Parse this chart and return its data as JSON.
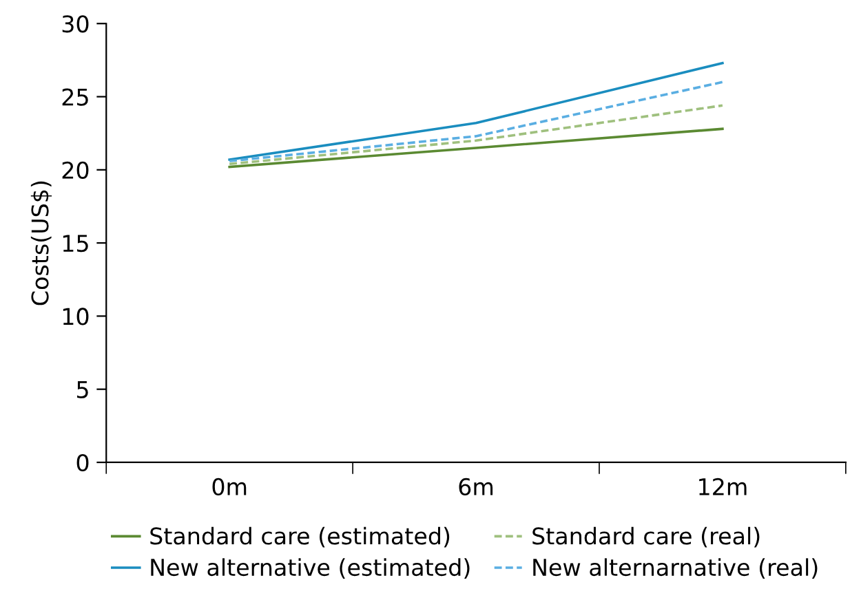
{
  "chart_data": {
    "type": "line",
    "ylabel": "Costs(US$)",
    "categories": [
      "0m",
      "6m",
      "12m"
    ],
    "ylim": [
      0,
      30
    ],
    "yticks": [
      0,
      5,
      10,
      15,
      20,
      25,
      30
    ],
    "grid": false,
    "legend": "bottom",
    "marker": "none",
    "series": [
      {
        "name": "Standard care (estimated)",
        "color": "#5b8a32",
        "line_style": "solid",
        "values": [
          20.2,
          21.5,
          22.8
        ]
      },
      {
        "name": "Standard care (real)",
        "color": "#9fc07e",
        "line_style": "dashed",
        "values": [
          20.4,
          22.0,
          24.4
        ]
      },
      {
        "name": "New alternative (estimated)",
        "color": "#1a8dbf",
        "line_style": "solid",
        "values": [
          20.7,
          23.2,
          27.3
        ]
      },
      {
        "name": "New alternarnative (real)",
        "color": "#5aaee2",
        "line_style": "dashed",
        "values": [
          20.6,
          22.3,
          26.0
        ]
      }
    ]
  }
}
